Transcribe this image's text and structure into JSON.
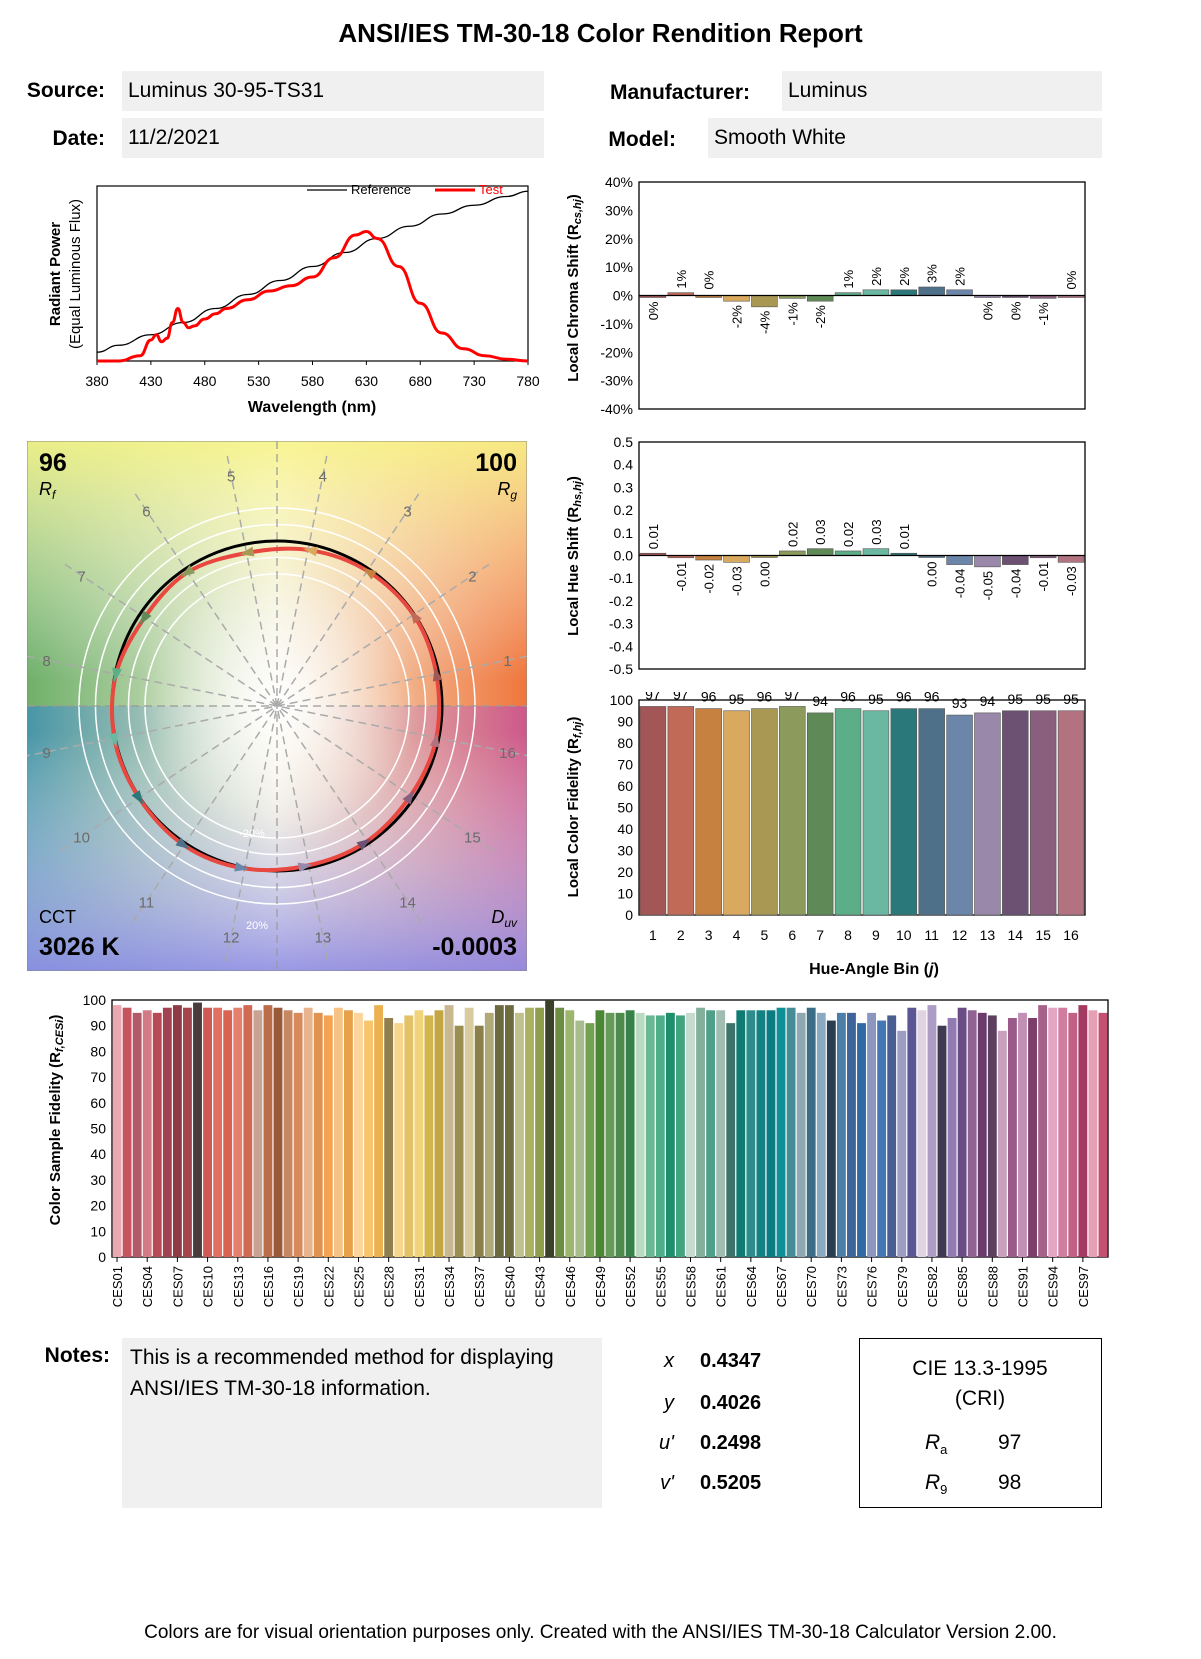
{
  "report": {
    "title": "ANSI/IES TM-30-18 Color Rendition Report",
    "source_label": "Source:",
    "source": "Luminus 30-95-TS31",
    "date_label": "Date:",
    "date": "11/2/2021",
    "manufacturer_label": "Manufacturer:",
    "manufacturer": "Luminus",
    "model_label": "Model:",
    "model": "Smooth White",
    "notes_label": "Notes:",
    "notes": "This is a recommended method for displaying ANSI/IES TM-30-18 information.",
    "footer": "Colors are for visual orientation purposes only. Created with the ANSI/IES TM-30-18 Calculator Version 2.00."
  },
  "coords": {
    "x_label": "x",
    "x": "0.4347",
    "y_label": "y",
    "y": "0.4026",
    "u_label": "u'",
    "u": "0.2498",
    "v_label": "v'",
    "v": "0.5205"
  },
  "cri": {
    "title": "CIE 13.3-1995",
    "subtitle": "(CRI)",
    "ra_label": "R",
    "ra_sub": "a",
    "ra": "97",
    "r9_label": "R",
    "r9_sub": "9",
    "r9": "98"
  },
  "colors": {
    "hue_bins": [
      "#a35656",
      "#c16a58",
      "#c6803f",
      "#d9a95f",
      "#a99854",
      "#8c9a5c",
      "#5f8a57",
      "#5cae88",
      "#6ab8a1",
      "#2b787b",
      "#4e7088",
      "#6c86aa",
      "#9a88ab",
      "#6c5172",
      "#8a5f7e",
      "#b2727f"
    ],
    "reference_line": "#000000",
    "test_line": "#ff0000",
    "vector_curve": "#e8483f"
  },
  "chart_data": [
    {
      "type": "line",
      "name": "spd",
      "xlabel": "Wavelength (nm)",
      "ylabel": "Radiant Power",
      "ylabel2": "(Equal Luminous Flux)",
      "xlim": [
        380,
        780
      ],
      "xticks": [
        "380",
        "430",
        "480",
        "530",
        "580",
        "630",
        "680",
        "730",
        "780"
      ],
      "legend_position": "top-right",
      "series": [
        {
          "name": "Reference",
          "x": [
            380,
            400,
            430,
            460,
            490,
            520,
            550,
            580,
            610,
            640,
            670,
            700,
            730,
            760,
            780
          ],
          "y": [
            0.05,
            0.09,
            0.15,
            0.22,
            0.3,
            0.38,
            0.46,
            0.54,
            0.62,
            0.7,
            0.77,
            0.84,
            0.89,
            0.94,
            0.97
          ]
        },
        {
          "name": "Test",
          "x": [
            380,
            400,
            420,
            430,
            435,
            440,
            445,
            450,
            455,
            460,
            465,
            470,
            480,
            490,
            500,
            520,
            540,
            560,
            580,
            600,
            620,
            630,
            640,
            660,
            680,
            700,
            720,
            740,
            760,
            780
          ],
          "y": [
            0.0,
            0.0,
            0.03,
            0.12,
            0.15,
            0.11,
            0.13,
            0.22,
            0.3,
            0.22,
            0.19,
            0.2,
            0.24,
            0.27,
            0.3,
            0.35,
            0.4,
            0.43,
            0.48,
            0.59,
            0.72,
            0.74,
            0.7,
            0.54,
            0.33,
            0.16,
            0.07,
            0.03,
            0.01,
            0.0
          ]
        }
      ]
    },
    {
      "type": "bar",
      "name": "local-chroma-shift",
      "ylabel": "Local Chroma Shift (R",
      "ylabel_sub": "cs,hj",
      "ylabel_end": ")",
      "ylim": [
        -0.4,
        0.4
      ],
      "yticks": [
        "40%",
        "30%",
        "20%",
        "10%",
        "0%",
        "-10%",
        "-20%",
        "-30%",
        "-40%"
      ],
      "categories": [
        "1",
        "2",
        "3",
        "4",
        "5",
        "6",
        "7",
        "8",
        "9",
        "10",
        "11",
        "12",
        "13",
        "14",
        "15",
        "16"
      ],
      "values": [
        0.0,
        0.01,
        0.0,
        -0.02,
        -0.04,
        -0.01,
        -0.02,
        0.01,
        0.02,
        0.02,
        0.03,
        0.02,
        0.0,
        0.0,
        -0.01,
        0.0
      ],
      "labels": [
        "0%",
        "1%",
        "0%",
        "-2%",
        "-4%",
        "-1%",
        "-2%",
        "1%",
        "2%",
        "2%",
        "3%",
        "2%",
        "0%",
        "0%",
        "-1%",
        "0%"
      ]
    },
    {
      "type": "bar",
      "name": "local-hue-shift",
      "ylabel": "Local Hue Shift (R",
      "ylabel_sub": "hs,hj",
      "ylabel_end": ")",
      "ylim": [
        -0.5,
        0.5
      ],
      "yticks": [
        "0.5",
        "0.4",
        "0.3",
        "0.2",
        "0.1",
        "0.0",
        "-0.1",
        "-0.2",
        "-0.3",
        "-0.4",
        "-0.5"
      ],
      "categories": [
        "1",
        "2",
        "3",
        "4",
        "5",
        "6",
        "7",
        "8",
        "9",
        "10",
        "11",
        "12",
        "13",
        "14",
        "15",
        "16"
      ],
      "values": [
        0.01,
        -0.01,
        -0.02,
        -0.03,
        0.0,
        0.02,
        0.03,
        0.02,
        0.03,
        0.01,
        0.0,
        -0.04,
        -0.05,
        -0.04,
        -0.01,
        -0.03
      ],
      "labels": [
        "0.01",
        "-0.01",
        "-0.02",
        "-0.03",
        "0.00",
        "0.02",
        "0.03",
        "0.02",
        "0.03",
        "0.01",
        "0.00",
        "-0.04",
        "-0.05",
        "-0.04",
        "-0.01",
        "-0.03"
      ]
    },
    {
      "type": "bar",
      "name": "local-color-fidelity",
      "ylabel": "Local Color Fidelity (R",
      "ylabel_sub": "f,hj",
      "ylabel_end": ")",
      "xlabel": "Hue-Angle Bin (",
      "xlabel_var": "j",
      "xlabel_end": ")",
      "ylim": [
        0,
        100
      ],
      "yticks": [
        "100",
        "90",
        "80",
        "70",
        "60",
        "50",
        "40",
        "30",
        "20",
        "10",
        "0"
      ],
      "categories": [
        "1",
        "2",
        "3",
        "4",
        "5",
        "6",
        "7",
        "8",
        "9",
        "10",
        "11",
        "12",
        "13",
        "14",
        "15",
        "16"
      ],
      "values": [
        97,
        97,
        96,
        95,
        96,
        97,
        94,
        96,
        95,
        96,
        96,
        93,
        94,
        95,
        95,
        95
      ],
      "labels": [
        "97",
        "97",
        "96",
        "95",
        "96",
        "97",
        "94",
        "96",
        "95",
        "96",
        "96",
        "93",
        "94",
        "95",
        "95",
        "95"
      ]
    },
    {
      "type": "vector_graphic",
      "name": "color-vector-graphic",
      "rf": "96",
      "rf_label": "R",
      "rf_sub": "f",
      "rg": "100",
      "rg_label": "R",
      "rg_sub": "g",
      "cct_label": "CCT",
      "cct": "3026 K",
      "duv_label": "D",
      "duv_sub": "uv",
      "duv": "-0.0003",
      "ring_labels": [
        "-20%",
        "20%"
      ],
      "bin_labels": [
        "1",
        "2",
        "3",
        "4",
        "5",
        "6",
        "7",
        "8",
        "9",
        "10",
        "11",
        "12",
        "13",
        "14",
        "15",
        "16"
      ]
    },
    {
      "type": "bar",
      "name": "color-sample-fidelity",
      "ylabel": "Color Sample Fidelity (R",
      "ylabel_sub": "f,CESi",
      "ylabel_end": ")",
      "ylim": [
        0,
        100
      ],
      "yticks": [
        "100",
        "90",
        "80",
        "70",
        "60",
        "50",
        "40",
        "30",
        "20",
        "10",
        "0"
      ],
      "tick_labels": [
        "CES01",
        "CES04",
        "CES07",
        "CES10",
        "CES13",
        "CES16",
        "CES19",
        "CES22",
        "CES25",
        "CES28",
        "CES31",
        "CES34",
        "CES37",
        "CES40",
        "CES43",
        "CES46",
        "CES49",
        "CES52",
        "CES55",
        "CES58",
        "CES61",
        "CES64",
        "CES67",
        "CES70",
        "CES73",
        "CES76",
        "CES79",
        "CES82",
        "CES85",
        "CES88",
        "CES91",
        "CES94",
        "CES97"
      ],
      "values": [
        98,
        97,
        95,
        96,
        95,
        97,
        98,
        97,
        99,
        97,
        97,
        96,
        97,
        98,
        96,
        98,
        97,
        96,
        95,
        97,
        95,
        94,
        97,
        96,
        95,
        92,
        98,
        93,
        91,
        94,
        96,
        94,
        96,
        98,
        90,
        97,
        90,
        95,
        98,
        98,
        95,
        97,
        97,
        100,
        97,
        96,
        92,
        91,
        96,
        95,
        95,
        96,
        95,
        94,
        94,
        95,
        94,
        95,
        97,
        96,
        96,
        91,
        96,
        96,
        96,
        96,
        97,
        97,
        95,
        97,
        95,
        92,
        95,
        95,
        91,
        95,
        92,
        94,
        88,
        97,
        96,
        98,
        90,
        93,
        97,
        96,
        95,
        94,
        88,
        93,
        95,
        93,
        98,
        97,
        97,
        95,
        98,
        96,
        95
      ],
      "colors": [
        "#e8a9b1",
        "#c6545f",
        "#b25a67",
        "#d37a87",
        "#b84a57",
        "#a24150",
        "#8f3a44",
        "#a7454f",
        "#4a3b3d",
        "#cf5a54",
        "#e17060",
        "#d96352",
        "#e4806d",
        "#d06a52",
        "#c8a394",
        "#bb6c48",
        "#9a5a3a",
        "#c58863",
        "#d98a5b",
        "#e8b38f",
        "#e19250",
        "#f3a352",
        "#f7c286",
        "#e8a04a",
        "#fbd59b",
        "#f8c46c",
        "#ebb050",
        "#917e4e",
        "#f6d58c",
        "#e2c167",
        "#f0d37b",
        "#d1b64d",
        "#c3a542",
        "#c7b890",
        "#9b8e52",
        "#d8cc9e",
        "#8b8049",
        "#b0a978",
        "#6c6a40",
        "#6e6b3f",
        "#c0c18c",
        "#aab160",
        "#8f9e4a",
        "#3b4028",
        "#6d8d43",
        "#9eb56e",
        "#a8bd8f",
        "#74a150",
        "#4c8736",
        "#669a58",
        "#4d8a4c",
        "#368248",
        "#b9dbc0",
        "#6bb793",
        "#4dae88",
        "#1d8f6d",
        "#41a47e",
        "#c4dbcd",
        "#82b09a",
        "#4fa088",
        "#a1bcb1",
        "#3d736a",
        "#107b73",
        "#2e8d8c",
        "#138083",
        "#0a7b80",
        "#0d8f95",
        "#458c96",
        "#8fa9b2",
        "#3b6e86",
        "#8ca9c2",
        "#2a3e52",
        "#4d7ea8",
        "#3e6599",
        "#2f6aa3",
        "#8b97bf",
        "#4478b5",
        "#4a5e91",
        "#9d9dc4",
        "#5c5794",
        "#e2d3e3",
        "#ad9cc4",
        "#3f3a52",
        "#927bb2",
        "#6a4d86",
        "#906393",
        "#6b3c6b",
        "#5d3f5e",
        "#c9a1be",
        "#9b5b8a",
        "#c290b5",
        "#7d3f6a",
        "#a7628c",
        "#e3a5c1",
        "#d17da0",
        "#c26185",
        "#a33a5f",
        "#e6a0b6",
        "#c6506f"
      ]
    }
  ]
}
